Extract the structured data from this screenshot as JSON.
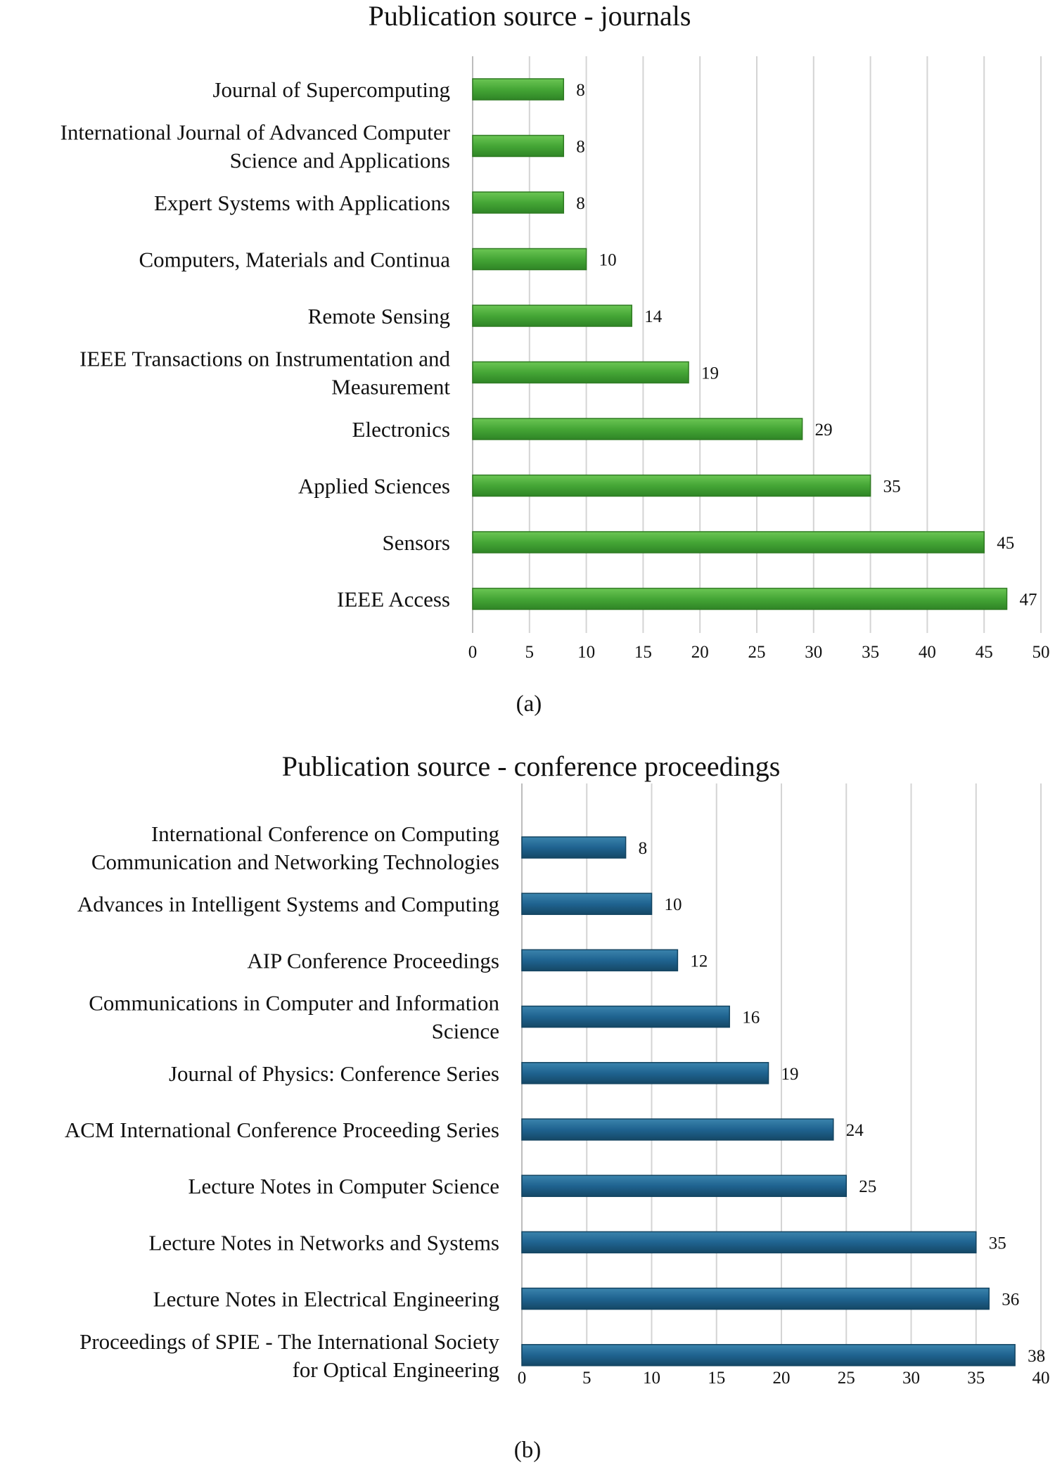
{
  "chart_data": [
    {
      "type": "bar",
      "orientation": "horizontal",
      "title": "Publication source - journals",
      "panel_label": "(a)",
      "color": "#4caf3e",
      "categories": [
        "Journal of Supercomputing",
        "International Journal of Advanced Computer Science and Applications",
        "Expert Systems with Applications",
        "Computers, Materials and Continua",
        "Remote Sensing",
        "IEEE Transactions on Instrumentation and Measurement",
        "Electronics",
        "Applied Sciences",
        "Sensors",
        "IEEE Access"
      ],
      "category_lines": [
        [
          "Journal of Supercomputing"
        ],
        [
          "International Journal of Advanced Computer",
          "Science and Applications"
        ],
        [
          "Expert Systems with Applications"
        ],
        [
          "Computers, Materials and Continua"
        ],
        [
          "Remote Sensing"
        ],
        [
          "IEEE Transactions on Instrumentation and",
          "Measurement"
        ],
        [
          "Electronics"
        ],
        [
          "Applied Sciences"
        ],
        [
          "Sensors"
        ],
        [
          "IEEE Access"
        ]
      ],
      "values": [
        8,
        8,
        8,
        10,
        14,
        19,
        29,
        35,
        45,
        47
      ],
      "xlim": [
        0,
        50
      ],
      "xticks": [
        0,
        5,
        10,
        15,
        20,
        25,
        30,
        35,
        40,
        45,
        50
      ],
      "xlabel": "",
      "ylabel": "",
      "grid": true,
      "legend": "none"
    },
    {
      "type": "bar",
      "orientation": "horizontal",
      "title": "Publication source - conference proceedings",
      "panel_label": "(b)",
      "color": "#1d5f86",
      "categories": [
        "International Conference on Computing Communication and Networking Technologies",
        "Advances in Intelligent Systems and Computing",
        "AIP Conference Proceedings",
        "Communications in Computer and Information Science",
        "Journal of Physics: Conference Series",
        "ACM International Conference Proceeding Series",
        "Lecture Notes in Computer Science",
        "Lecture Notes in Networks and Systems",
        "Lecture Notes in Electrical Engineering",
        "Proceedings of SPIE - The International Society for Optical Engineering"
      ],
      "category_lines": [
        [
          "International Conference on Computing",
          "Communication and Networking Technologies"
        ],
        [
          "Advances in Intelligent Systems and Computing"
        ],
        [
          "AIP Conference Proceedings"
        ],
        [
          "Communications in Computer and Information",
          "Science"
        ],
        [
          "Journal of Physics: Conference Series"
        ],
        [
          "ACM International Conference Proceeding Series"
        ],
        [
          "Lecture Notes in Computer Science"
        ],
        [
          "Lecture Notes in Networks and Systems"
        ],
        [
          "Lecture Notes in Electrical Engineering"
        ],
        [
          "Proceedings of SPIE - The International Society",
          "for Optical Engineering"
        ]
      ],
      "values": [
        8,
        10,
        12,
        16,
        19,
        24,
        25,
        35,
        36,
        38
      ],
      "xlim": [
        0,
        40
      ],
      "xticks": [
        0,
        5,
        10,
        15,
        20,
        25,
        30,
        35,
        40
      ],
      "xlabel": "",
      "ylabel": "",
      "grid": true,
      "legend": "none"
    }
  ]
}
